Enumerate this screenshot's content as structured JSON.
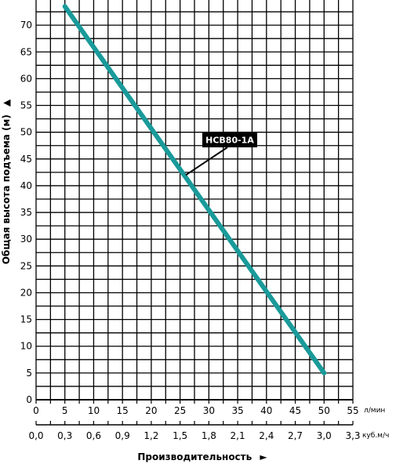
{
  "chart_data": {
    "type": "line",
    "ylabel": "Общая высота подъема (м)",
    "xlabel": "Производительность",
    "y_arrow": "▲",
    "x_arrow": "►",
    "ylim": [
      0,
      75
    ],
    "y_ticks": [
      "0",
      "5",
      "10",
      "15",
      "20",
      "25",
      "30",
      "35",
      "40",
      "45",
      "50",
      "55",
      "60",
      "65",
      "70"
    ],
    "x_primary": {
      "unit": "л/мин",
      "xlim": [
        0,
        55
      ],
      "ticks": [
        "0",
        "5",
        "10",
        "15",
        "20",
        "25",
        "30",
        "35",
        "40",
        "45",
        "50",
        "55"
      ]
    },
    "x_secondary": {
      "unit": "куб.м/ч",
      "ticks": [
        "0,0",
        "0,3",
        "0,6",
        "0,9",
        "1,2",
        "1,5",
        "1,8",
        "2,1",
        "2,4",
        "2,7",
        "3,0",
        "3,3"
      ]
    },
    "grid": true,
    "series": [
      {
        "name": "HCB80-1A",
        "color": "#1a9a9a",
        "x": [
          5,
          50
        ],
        "y": [
          73.5,
          5
        ]
      }
    ],
    "annotation": {
      "text": "HCB80-1A",
      "points_to": [
        26,
        42
      ]
    }
  }
}
